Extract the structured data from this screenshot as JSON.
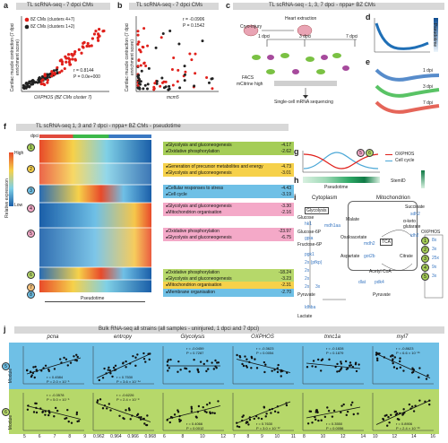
{
  "panels": {
    "a": {
      "letter": "a",
      "title": "TL scRNA-seq - 7 dpci CMs",
      "legend": [
        "8Z CMs (clusters 4+7)",
        "8Z CMs (clusters 1+2)"
      ],
      "stats": [
        "r = 0.8144",
        "P = 0.0e+000"
      ],
      "ylabel": "Cardiac muscle contraction (7 dpci enrichment score)",
      "xlabel": "OXPHOS (BZ CMs cluster 7)"
    },
    "b": {
      "letter": "b",
      "title": "TL scRNA-seq - 7 dpci CMs",
      "stats": [
        "r = -0.0906",
        "P = 0.1542"
      ],
      "ylabel": "Cardiac muscle contraction (7 dpci enrichment score)",
      "xlabel": "mcm5"
    },
    "c": {
      "letter": "c",
      "title": "TL scRNA-seq - 1, 3, 7 dpci - nppa+ BZ CMs",
      "steps": [
        "Cryo-injury",
        "Heart extraction",
        "1 dpci",
        "3 dpci",
        "7 dpci",
        "FACS",
        "mCitrine high",
        "Single-cell mRNA sequencing"
      ]
    },
    "d": {
      "letter": "d",
      "label": "Pseudotime"
    },
    "e": {
      "letter": "e",
      "labels": [
        "1 dpi",
        "3 dpi",
        "7 dpi"
      ]
    },
    "f": {
      "letter": "f",
      "title": "TL scRNA-seq 1, 3 and 7 dpci - nppa+ BZ CMs - pseudotime",
      "dpci": "dpci",
      "colorbar": [
        "High",
        "Relative expression",
        "Low"
      ],
      "xlabel": "Pseudotime",
      "clusters": [
        {
          "id": "1",
          "terms": [
            [
              "Glycolysis and gluconeogenesis",
              "-4.17"
            ],
            [
              "Oxidative phosphorylation",
              "-2.62"
            ]
          ]
        },
        {
          "id": "2",
          "terms": [
            [
              "Generation of precursor metabolites and energy",
              "-4.73"
            ],
            [
              "Glycolysis and gluconeogenesis",
              "-3.01"
            ]
          ]
        },
        {
          "id": "3",
          "terms": [
            [
              "Cellular responses to stress",
              "-4.43"
            ],
            [
              "Cell cycle",
              "-3.19"
            ]
          ]
        },
        {
          "id": "4",
          "terms": [
            [
              "Glycolysis and gluconeogenesis",
              "-3.30"
            ],
            [
              "Mitochondrion organisation",
              "-2.16"
            ]
          ]
        },
        {
          "id": "5",
          "terms": [
            [
              "Oxidative phosphorylation",
              "-23.97"
            ],
            [
              "Glycolysis and gluconeogenesis",
              "-6.75"
            ]
          ]
        },
        {
          "id": "6",
          "terms": [
            [
              "Oxidative phosphorylation",
              "-18.24"
            ],
            [
              "Glycolysis and gluconeogenesis",
              "-3.23"
            ]
          ]
        },
        {
          "id": "7",
          "terms": [
            [
              "Mitochondrion organisation",
              "-2.31"
            ]
          ]
        },
        {
          "id": "8",
          "terms": [
            [
              "Membrane organisation",
              "-2.70"
            ]
          ]
        }
      ]
    },
    "g": {
      "letter": "g",
      "legend": [
        "OXPHOS",
        "Cell cycle"
      ]
    },
    "h": {
      "letter": "h",
      "label": "Pseudotime",
      "legend": "StemID"
    },
    "i": {
      "letter": "i",
      "compartments": [
        "Cytoplasm",
        "Mitochondrion"
      ],
      "glyco": [
        "Glycolysis",
        "Glucose",
        "Glucose-6P",
        "Fructose-6P",
        "Pyruvate",
        "Lactate"
      ],
      "enzymes": [
        "hk1",
        "gpia",
        "pgk1",
        "2x (pfkp)",
        "2x",
        "2x",
        "2x",
        "3x",
        "ldhba"
      ],
      "tca": [
        "TCA",
        "Malate",
        "Oxaloacetate",
        "Aspartate",
        "Succinate",
        "α-keto glutarate",
        "Citrate",
        "Acetyl CoA",
        "Pyruvate",
        "mdh1aa",
        "mdh2",
        "got2b",
        "sdh2",
        "idh2",
        "dlat",
        "pdk4"
      ],
      "oxphos": {
        "title": "OXPHOS",
        "items": [
          "8x",
          "3x",
          "25x",
          "9x",
          "3x"
        ]
      }
    },
    "j": {
      "letter": "j",
      "title": "Bulk RNA-seq all strains (all samples - uninjured, 1 dpci and 7 dpci)",
      "genes": [
        "pcna",
        "entropy",
        "Glycolysis",
        "OXPHOS",
        "tnnc1a",
        "myl7"
      ],
      "ylabel": "Module",
      "row5": [
        "r = 0.4584\nP = 2.0 × 10⁻⁵",
        "r = 0.7530\nP = 3.6 × 10⁻¹⁴",
        "r = -0.0459\nP = 0.7287",
        "r = -0.3623\nP = 0.0054",
        "r = -0.1828\nP = 0.1879",
        "r = -0.8623\nP = 6.6 × 10⁻¹⁵"
      ],
      "row6": [
        "r = -0.3578\nP = 5.0 × 10⁻⁵",
        "r = -0.6226\nP = 2.4 × 10⁻⁸",
        "r = 0.4066\nP = 0.0012",
        "r = 0.7630\nP = 3.0 × 10⁻¹²",
        "r = 0.3550\nP = 0.0056",
        "r = 0.8906\nP = 2.4 × 10⁻¹⁶"
      ],
      "xticks": [
        [
          "5",
          "6",
          "7",
          "8",
          "9"
        ],
        [
          "0.962",
          "0.964",
          "0.966",
          "0.968"
        ],
        [
          "6",
          "8",
          "10",
          "12"
        ],
        [
          "7",
          "8",
          "9",
          "10",
          "11"
        ],
        [
          "8",
          "10",
          "12",
          "14"
        ],
        [
          "10",
          "12",
          "14",
          "16"
        ]
      ]
    }
  },
  "colors": {
    "red": "#e0201b",
    "blue5": "#4aa7d6",
    "green6": "#a5cd57",
    "mod5": "#6fc0e6",
    "mod6": "#b6d86a",
    "pink": "#f4a9c8"
  }
}
